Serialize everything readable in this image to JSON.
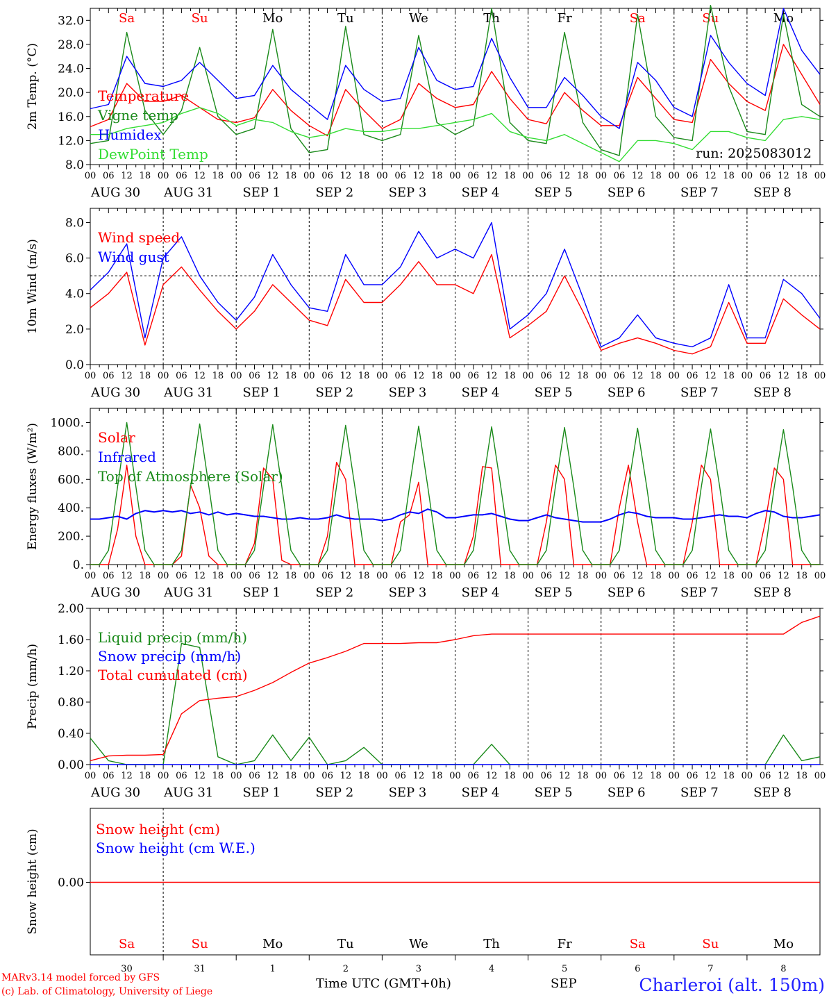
{
  "chart_data": [
    {
      "type": "line",
      "ylabel": "2m Temp. (°C)",
      "ylim": [
        8,
        34
      ],
      "yticks": [
        "8.0",
        "12.0",
        "16.0",
        "20.0",
        "24.0",
        "28.0",
        "32.0"
      ],
      "run_label": "run: 2025083012",
      "x_hours": [
        0,
        6,
        12,
        18,
        24,
        30,
        36,
        42,
        48,
        54,
        60,
        66,
        72,
        78,
        84,
        90,
        96,
        102,
        108,
        114,
        120,
        126,
        132,
        138,
        144,
        150,
        156,
        162,
        168,
        174,
        180,
        186,
        192,
        198,
        204,
        210,
        216,
        222,
        228,
        234,
        240
      ],
      "series": [
        {
          "name": "Temperature",
          "color": "#ff0000",
          "values": [
            14.3,
            15.5,
            21.5,
            18.5,
            18.5,
            19.5,
            17.5,
            15.5,
            15.0,
            15.8,
            20.5,
            17.0,
            14.5,
            12.8,
            20.5,
            17.0,
            14.0,
            15.5,
            21.5,
            19.0,
            17.5,
            18.0,
            23.5,
            19.0,
            15.5,
            14.8,
            20.0,
            17.0,
            14.5,
            14.5,
            22.5,
            19.0,
            15.5,
            15.0,
            25.5,
            21.5,
            18.5,
            17.0,
            28.0,
            23.0,
            18.0
          ]
        },
        {
          "name": "Vigne temp",
          "color": "#1a8a1a",
          "values": [
            11.5,
            12.0,
            30.0,
            17.0,
            13.0,
            17.0,
            27.5,
            16.0,
            13.0,
            14.0,
            30.5,
            14.0,
            10.0,
            10.5,
            31.0,
            13.0,
            12.0,
            13.0,
            29.5,
            15.0,
            13.0,
            14.5,
            34.0,
            15.0,
            12.0,
            11.5,
            30.0,
            15.0,
            10.5,
            9.5,
            33.0,
            16.0,
            12.5,
            12.0,
            34.5,
            21.0,
            13.5,
            13.0,
            33.0,
            18.0,
            16.0
          ]
        },
        {
          "name": "Humidex",
          "color": "#0000ff",
          "values": [
            17.3,
            18.0,
            26.0,
            21.5,
            21.0,
            22.0,
            25.0,
            22.0,
            19.0,
            19.5,
            24.5,
            20.5,
            18.0,
            15.5,
            24.5,
            20.5,
            18.5,
            19.0,
            27.5,
            22.0,
            20.5,
            21.0,
            29.0,
            22.5,
            17.5,
            17.5,
            22.5,
            19.5,
            16.0,
            14.0,
            25.0,
            22.0,
            17.5,
            16.0,
            29.5,
            25.0,
            21.5,
            19.5,
            34.0,
            27.0,
            23.0
          ]
        },
        {
          "name": "DewPoint Temp",
          "color": "#33dd33",
          "values": [
            13.0,
            13.0,
            14.0,
            14.5,
            15.0,
            16.5,
            17.5,
            16.5,
            14.5,
            15.5,
            15.0,
            13.5,
            12.5,
            13.0,
            14.0,
            13.5,
            13.5,
            14.0,
            14.0,
            14.5,
            15.0,
            15.5,
            16.5,
            13.5,
            12.5,
            12.0,
            13.0,
            11.5,
            10.0,
            8.5,
            12.0,
            12.0,
            11.5,
            10.5,
            13.5,
            13.5,
            12.5,
            12.0,
            15.5,
            16.0,
            15.5
          ]
        }
      ]
    },
    {
      "type": "line",
      "ylabel": "10m Wind (m/s)",
      "ylim": [
        0,
        8.8
      ],
      "yticks": [
        "0.0",
        "2.0",
        "4.0",
        "6.0",
        "8.0"
      ],
      "reference_line": 5.0,
      "x_hours": [
        0,
        6,
        12,
        18,
        24,
        30,
        36,
        42,
        48,
        54,
        60,
        66,
        72,
        78,
        84,
        90,
        96,
        102,
        108,
        114,
        120,
        126,
        132,
        138,
        144,
        150,
        156,
        162,
        168,
        174,
        180,
        186,
        192,
        198,
        204,
        210,
        216,
        222,
        228,
        234,
        240
      ],
      "series": [
        {
          "name": "Wind speed",
          "color": "#ff0000",
          "values": [
            3.2,
            4.0,
            5.2,
            1.1,
            4.5,
            5.5,
            4.2,
            3.0,
            2.0,
            3.0,
            4.5,
            3.5,
            2.5,
            2.2,
            4.8,
            3.5,
            3.5,
            4.5,
            5.8,
            4.5,
            4.5,
            4.0,
            6.2,
            1.5,
            2.2,
            3.0,
            5.0,
            3.0,
            0.8,
            1.2,
            1.5,
            1.2,
            0.8,
            0.6,
            1.0,
            3.5,
            1.2,
            1.2,
            3.7,
            2.8,
            2.0
          ]
        },
        {
          "name": "Wind gust",
          "color": "#0000ff",
          "values": [
            4.2,
            5.2,
            6.8,
            1.5,
            6.0,
            7.2,
            5.0,
            3.5,
            2.5,
            3.8,
            6.2,
            4.5,
            3.2,
            3.0,
            6.2,
            4.5,
            4.5,
            5.5,
            7.5,
            6.0,
            6.5,
            6.0,
            8.0,
            2.0,
            2.8,
            4.0,
            6.5,
            3.8,
            1.0,
            1.5,
            2.8,
            1.5,
            1.2,
            1.0,
            1.5,
            4.5,
            1.5,
            1.5,
            4.8,
            4.0,
            2.6
          ]
        }
      ]
    },
    {
      "type": "line",
      "ylabel": "Energy fluxes (W/m²)",
      "ylim": [
        0,
        1100
      ],
      "yticks": [
        "0.",
        "200.",
        "400.",
        "600.",
        "800.",
        "1000."
      ],
      "x_hours": [
        0,
        3,
        6,
        9,
        12,
        15,
        18,
        21,
        24,
        27,
        30,
        33,
        36,
        39,
        42,
        45,
        48,
        51,
        54,
        57,
        60,
        63,
        66,
        69,
        72,
        75,
        78,
        81,
        84,
        87,
        90,
        93,
        96,
        99,
        102,
        105,
        108,
        111,
        114,
        117,
        120,
        123,
        126,
        129,
        132,
        135,
        138,
        141,
        144,
        147,
        150,
        153,
        156,
        159,
        162,
        165,
        168,
        171,
        174,
        177,
        180,
        183,
        186,
        189,
        192,
        195,
        198,
        201,
        204,
        207,
        210,
        213,
        216,
        219,
        222,
        225,
        228,
        231,
        234,
        237,
        240
      ],
      "series": [
        {
          "name": "Solar",
          "color": "#ff0000",
          "values": [
            0,
            0,
            0,
            250,
            700,
            200,
            0,
            0,
            0,
            0,
            60,
            560,
            400,
            60,
            0,
            0,
            0,
            0,
            150,
            680,
            600,
            30,
            0,
            0,
            0,
            0,
            200,
            720,
            600,
            0,
            0,
            0,
            0,
            0,
            300,
            350,
            580,
            0,
            0,
            0,
            0,
            0,
            200,
            690,
            680,
            0,
            0,
            0,
            0,
            0,
            300,
            700,
            600,
            0,
            0,
            0,
            0,
            0,
            400,
            700,
            300,
            0,
            0,
            0,
            0,
            0,
            300,
            700,
            600,
            0,
            0,
            0,
            0,
            0,
            300,
            680,
            600,
            0,
            0,
            0,
            0
          ]
        },
        {
          "name": "Infrared",
          "color": "#0000ff",
          "values": [
            320,
            320,
            330,
            340,
            320,
            360,
            380,
            370,
            380,
            370,
            380,
            360,
            370,
            350,
            370,
            350,
            360,
            350,
            340,
            340,
            330,
            320,
            320,
            330,
            320,
            320,
            330,
            350,
            330,
            320,
            320,
            320,
            310,
            320,
            350,
            370,
            360,
            390,
            370,
            330,
            330,
            340,
            350,
            350,
            360,
            340,
            320,
            310,
            310,
            330,
            350,
            330,
            320,
            310,
            300,
            300,
            300,
            320,
            350,
            370,
            360,
            340,
            330,
            330,
            330,
            320,
            320,
            330,
            340,
            350,
            340,
            340,
            330,
            360,
            380,
            370,
            340,
            330,
            330,
            340,
            350
          ]
        },
        {
          "name": "Top of Atmosphere (Solar)",
          "color": "#1a8a1a",
          "values": [
            0,
            0,
            100,
            550,
            1000,
            550,
            100,
            0,
            0,
            0,
            100,
            550,
            990,
            550,
            100,
            0,
            0,
            0,
            100,
            550,
            985,
            550,
            100,
            0,
            0,
            0,
            100,
            550,
            980,
            550,
            100,
            0,
            0,
            0,
            100,
            550,
            975,
            550,
            100,
            0,
            0,
            0,
            100,
            550,
            970,
            550,
            100,
            0,
            0,
            0,
            100,
            550,
            965,
            550,
            100,
            0,
            0,
            0,
            100,
            550,
            960,
            550,
            100,
            0,
            0,
            0,
            100,
            550,
            955,
            550,
            100,
            0,
            0,
            0,
            100,
            550,
            950,
            550,
            100,
            0,
            0
          ]
        }
      ]
    },
    {
      "type": "line",
      "ylabel": "Precip (mm/h)",
      "ylim": [
        0,
        2.0
      ],
      "yticks": [
        "0.00",
        "0.40",
        "0.80",
        "1.20",
        "1.60",
        "2.00"
      ],
      "x_hours": [
        0,
        6,
        12,
        18,
        24,
        30,
        36,
        42,
        48,
        54,
        60,
        66,
        72,
        78,
        84,
        90,
        96,
        102,
        108,
        114,
        120,
        126,
        132,
        138,
        144,
        150,
        156,
        162,
        168,
        174,
        180,
        186,
        192,
        198,
        204,
        210,
        216,
        222,
        228,
        234,
        240
      ],
      "series": [
        {
          "name": "Liquid precip (mm/h)",
          "color": "#1a8a1a",
          "values": [
            0.34,
            0.05,
            0.0,
            0.0,
            0.0,
            1.55,
            1.5,
            0.1,
            0.0,
            0.05,
            0.38,
            0.05,
            0.35,
            0.0,
            0.05,
            0.22,
            0.0,
            0.0,
            0.0,
            0.0,
            0.0,
            0.0,
            0.26,
            0.0,
            0.0,
            0.0,
            0.0,
            0.0,
            0.0,
            0.0,
            0.0,
            0.0,
            0.0,
            0.0,
            0.0,
            0.0,
            0.0,
            0.0,
            0.38,
            0.05,
            0.1
          ]
        },
        {
          "name": "Snow precip (mm/h)",
          "color": "#0000ff",
          "values": [
            0,
            0,
            0,
            0,
            0,
            0,
            0,
            0,
            0,
            0,
            0,
            0,
            0,
            0,
            0,
            0,
            0,
            0,
            0,
            0,
            0,
            0,
            0,
            0,
            0,
            0,
            0,
            0,
            0,
            0,
            0,
            0,
            0,
            0,
            0,
            0,
            0,
            0,
            0,
            0,
            0
          ]
        },
        {
          "name": "Total cumulated (cm)",
          "color": "#ff0000",
          "values": [
            0.05,
            0.11,
            0.12,
            0.12,
            0.13,
            0.65,
            0.82,
            0.85,
            0.87,
            0.95,
            1.05,
            1.18,
            1.3,
            1.37,
            1.45,
            1.55,
            1.55,
            1.55,
            1.56,
            1.56,
            1.6,
            1.65,
            1.67,
            1.67,
            1.67,
            1.67,
            1.67,
            1.67,
            1.67,
            1.67,
            1.67,
            1.67,
            1.67,
            1.67,
            1.67,
            1.67,
            1.67,
            1.67,
            1.67,
            1.82,
            1.9
          ]
        }
      ]
    },
    {
      "type": "line",
      "ylabel": "Snow height (cm)",
      "yticks": [
        "0.00"
      ],
      "series": [
        {
          "name": "Snow height (cm)",
          "color": "#ff0000",
          "values": [
            0,
            0
          ]
        },
        {
          "name": "Snow height (cm W.E.)",
          "color": "#0000ff",
          "values": [
            0,
            0
          ]
        }
      ]
    }
  ],
  "x_axis": {
    "hour_ticks": [
      "00",
      "06",
      "12",
      "18"
    ],
    "end_tick": "00",
    "date_labels": [
      "AUG 30",
      "AUG 31",
      "SEP  1",
      "SEP  2",
      "SEP  3",
      "SEP  4",
      "SEP  5",
      "SEP  6",
      "SEP  7",
      "SEP  8"
    ],
    "weekdays": [
      "Sa",
      "Su",
      "Mo",
      "Tu",
      "We",
      "Th",
      "Fr",
      "Sa",
      "Su",
      "Mo"
    ],
    "weekend_color": "#ff0000",
    "weekday_color": "#000000",
    "day_numbers": [
      "30",
      "31",
      "1",
      "2",
      "3",
      "4",
      "5",
      "6",
      "7",
      "8"
    ],
    "xlabel": "Time UTC (GMT+0h)",
    "month_label": "SEP"
  },
  "footer": {
    "model_line": "MARv3.14 model forced by GFS",
    "credit_line": "(c) Lab. of Climatology, University of Liege",
    "station": "Charleroi (alt. 150m)"
  }
}
